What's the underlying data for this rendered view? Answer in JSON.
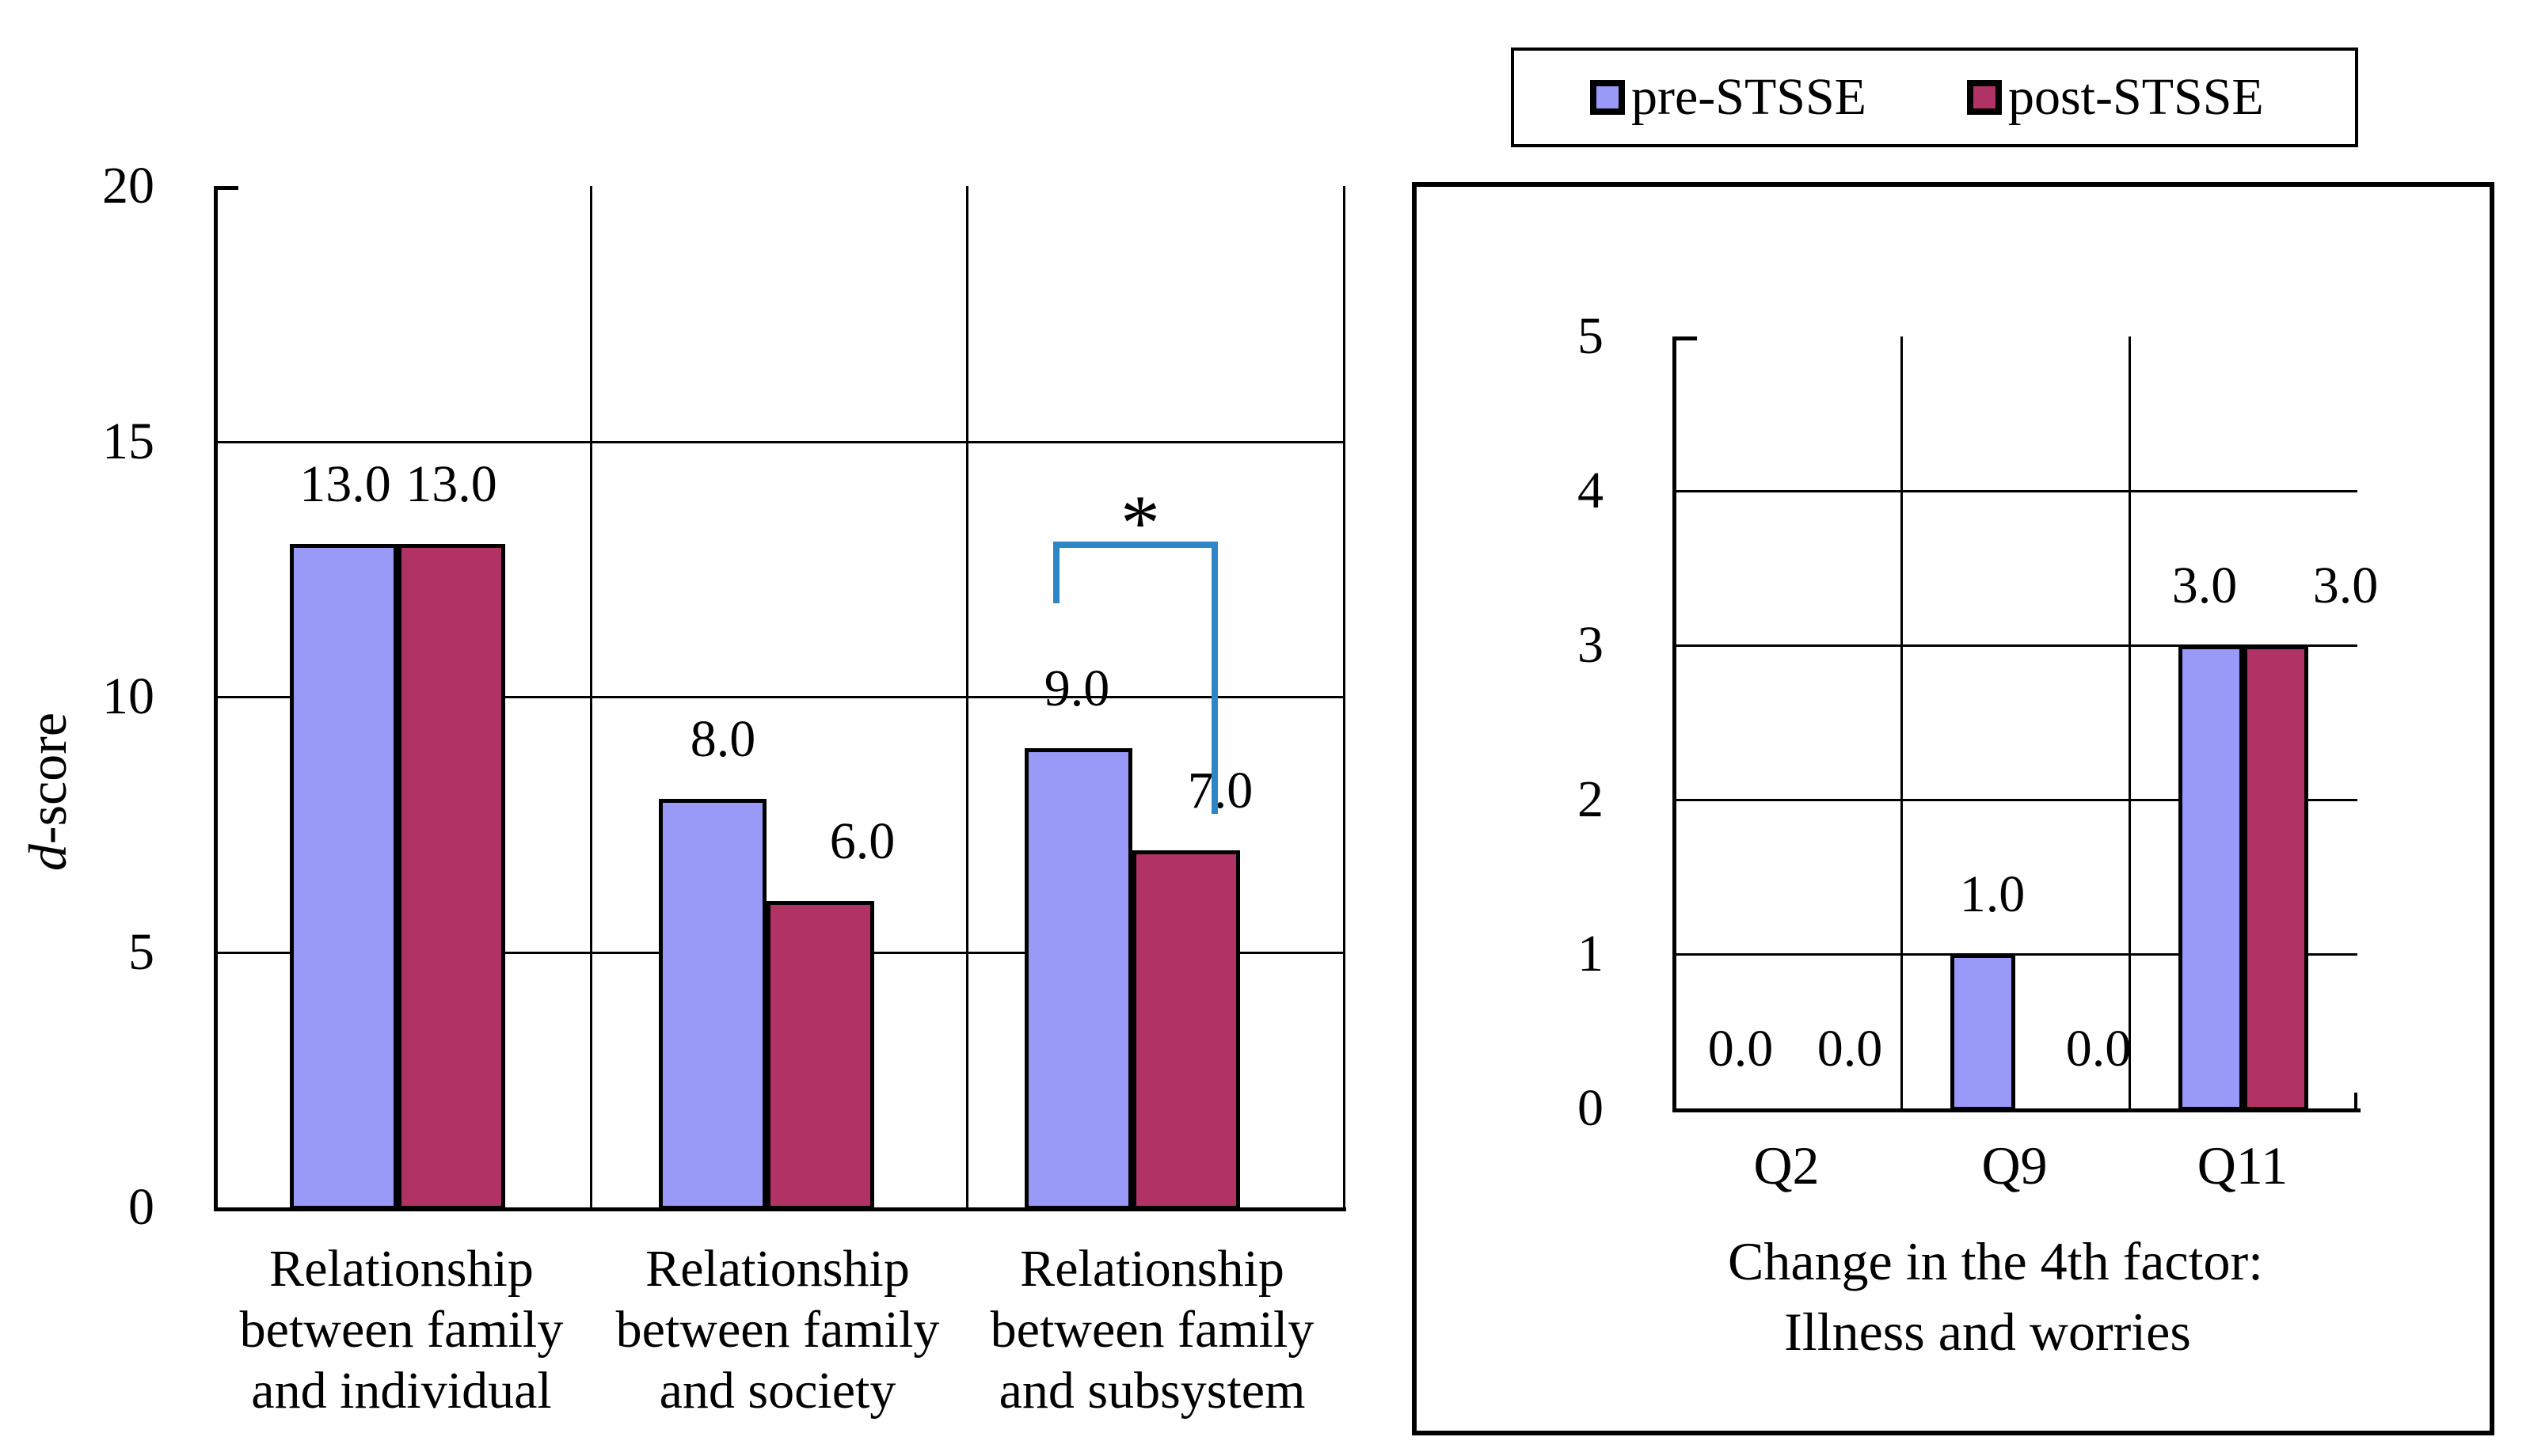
{
  "legend": {
    "labels": [
      "pre-STSSE",
      "post-STSSE"
    ]
  },
  "colors": {
    "pre_fill": "#9999F7",
    "post_fill": "#B13366",
    "bracket_blue": "#2E86C6",
    "line_black": "#000000",
    "background": "#FFFFFF"
  },
  "chart_data": [
    {
      "type": "bar",
      "panel": "left",
      "ylabel": {
        "italic": "d",
        "rest": "-score"
      },
      "ylim": [
        0,
        20
      ],
      "yticks": [
        0,
        5,
        10,
        15,
        20
      ],
      "gridlines": [
        5,
        10,
        15
      ],
      "legend_position": "top-right",
      "categories": [
        [
          "Relationship",
          "between family",
          "and individual"
        ],
        [
          "Relationship",
          "between family",
          "and society"
        ],
        [
          "Relationship",
          "between family",
          "and subsystem"
        ]
      ],
      "series": [
        {
          "name": "pre-STSSE",
          "values": [
            13.0,
            8.0,
            9.0
          ]
        },
        {
          "name": "post-STSSE",
          "values": [
            13.0,
            6.0,
            7.0
          ]
        }
      ],
      "value_labels": [
        [
          "13.0",
          "8.0",
          "9.0"
        ],
        [
          "13.0",
          "6.0",
          "7.0"
        ]
      ],
      "annotation": {
        "symbol": "*",
        "category": "Relationship between family and subsystem"
      }
    },
    {
      "type": "bar",
      "panel": "right",
      "title_lines": [
        "Change in the 4th factor:",
        "Illness and worries"
      ],
      "ylim": [
        0,
        5
      ],
      "yticks": [
        0,
        1,
        2,
        3,
        4,
        5
      ],
      "gridlines": [
        1,
        2,
        3,
        4
      ],
      "categories": [
        "Q2",
        "Q9",
        "Q11"
      ],
      "series": [
        {
          "name": "pre-STSSE",
          "values": [
            0.0,
            1.0,
            3.0
          ]
        },
        {
          "name": "post-STSSE",
          "values": [
            0.0,
            0.0,
            3.0
          ]
        }
      ],
      "value_labels": [
        [
          "0.0",
          "1.0",
          "3.0"
        ],
        [
          "0.0",
          "0.0",
          "3.0"
        ]
      ]
    }
  ]
}
